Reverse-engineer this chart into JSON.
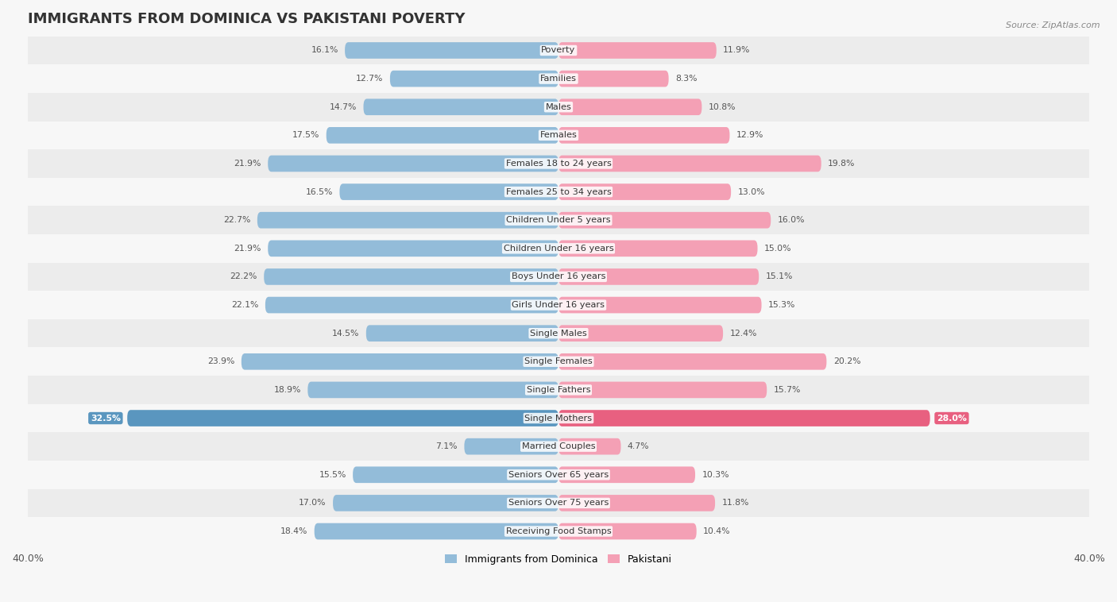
{
  "title": "IMMIGRANTS FROM DOMINICA VS PAKISTANI POVERTY",
  "source": "Source: ZipAtlas.com",
  "categories": [
    "Poverty",
    "Families",
    "Males",
    "Females",
    "Females 18 to 24 years",
    "Females 25 to 34 years",
    "Children Under 5 years",
    "Children Under 16 years",
    "Boys Under 16 years",
    "Girls Under 16 years",
    "Single Males",
    "Single Females",
    "Single Fathers",
    "Single Mothers",
    "Married Couples",
    "Seniors Over 65 years",
    "Seniors Over 75 years",
    "Receiving Food Stamps"
  ],
  "dominica_values": [
    16.1,
    12.7,
    14.7,
    17.5,
    21.9,
    16.5,
    22.7,
    21.9,
    22.2,
    22.1,
    14.5,
    23.9,
    18.9,
    32.5,
    7.1,
    15.5,
    17.0,
    18.4
  ],
  "pakistani_values": [
    11.9,
    8.3,
    10.8,
    12.9,
    19.8,
    13.0,
    16.0,
    15.0,
    15.1,
    15.3,
    12.4,
    20.2,
    15.7,
    28.0,
    4.7,
    10.3,
    11.8,
    10.4
  ],
  "dominica_color": "#93bcd9",
  "pakistani_color": "#f4a0b5",
  "dominica_highlight_color": "#5a96bf",
  "pakistani_highlight_color": "#e86080",
  "background_color": "#f7f7f7",
  "row_color_odd": "#ececec",
  "row_color_even": "#f7f7f7",
  "xlim": 40.0,
  "legend_dominica": "Immigrants from Dominica",
  "legend_pakistani": "Pakistani",
  "title_fontsize": 13,
  "label_fontsize": 8.2,
  "value_fontsize": 7.8,
  "bar_height": 0.58
}
